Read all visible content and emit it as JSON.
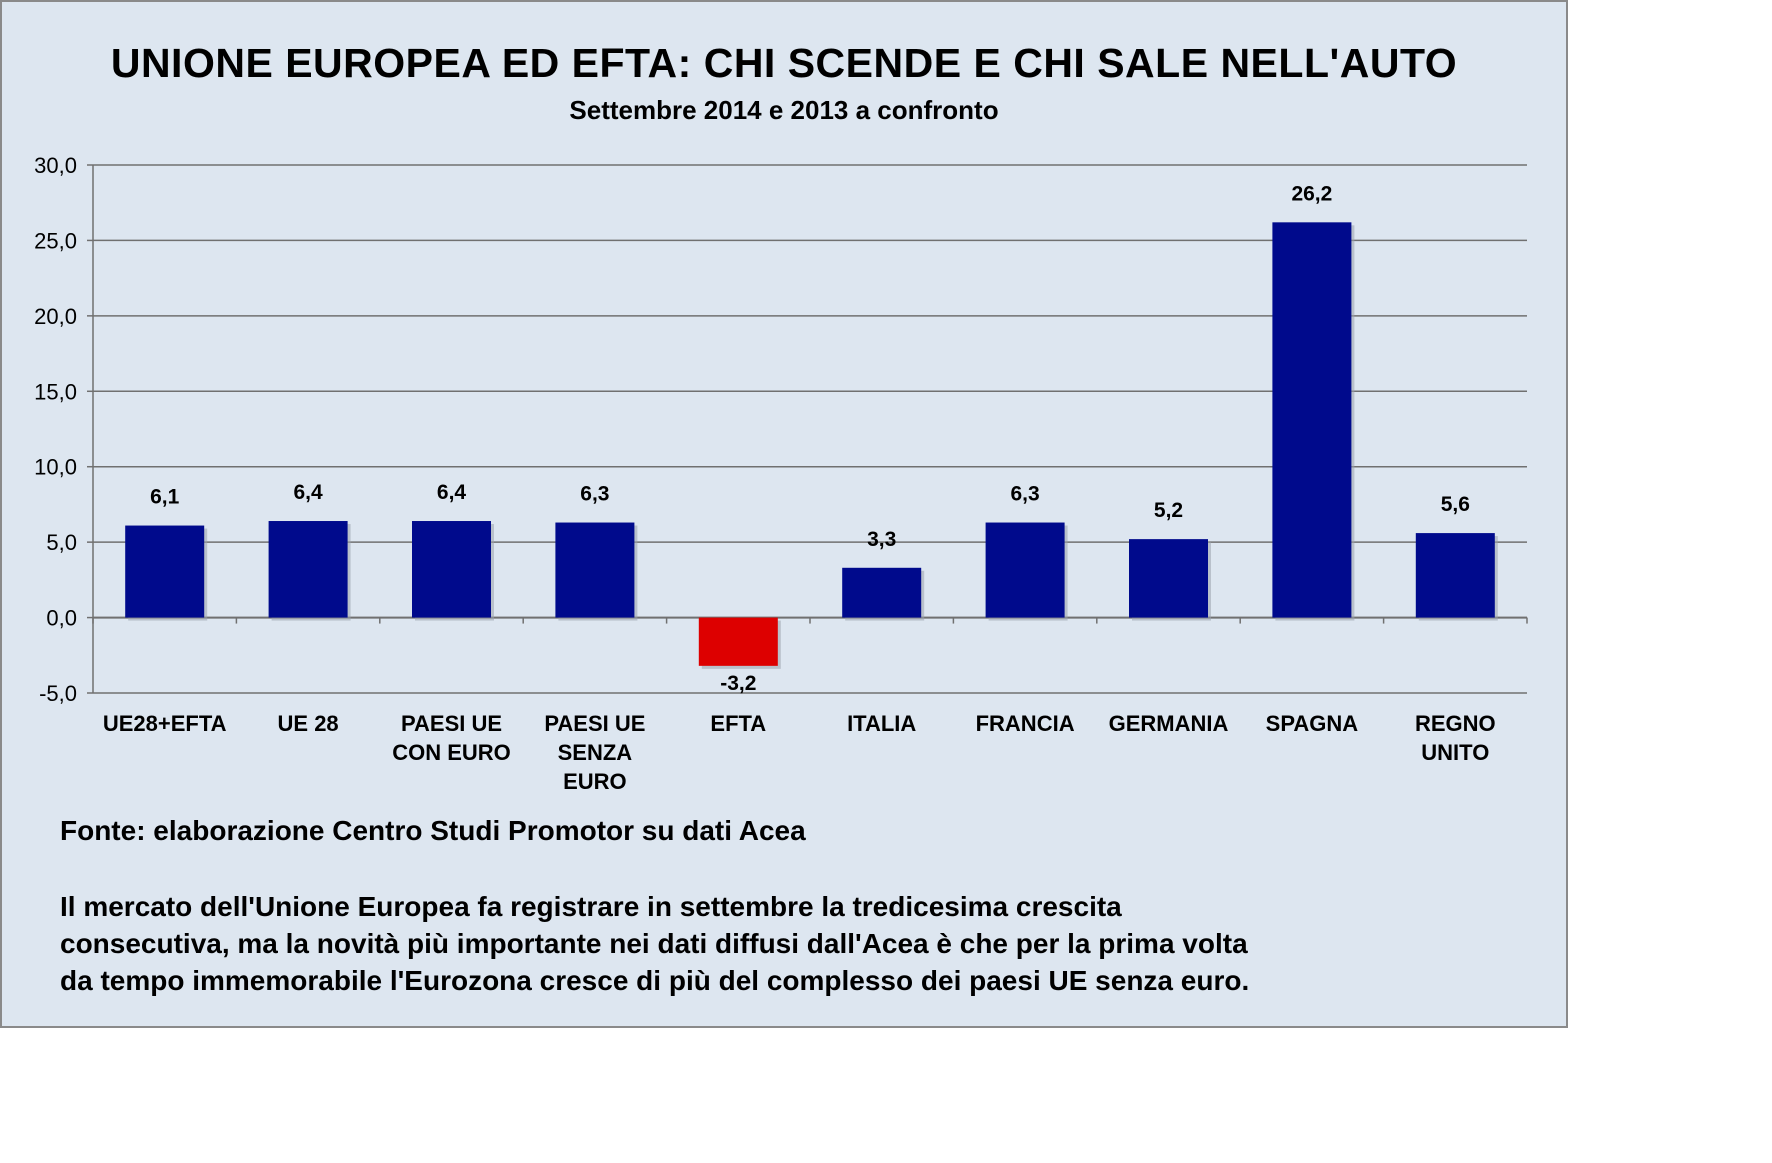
{
  "chart_data": {
    "type": "bar",
    "title": "UNIONE EUROPEA ED EFTA: CHI SCENDE E CHI SALE NELL'AUTO",
    "subtitle": "Settembre 2014 e 2013 a confronto",
    "categories": [
      [
        "UE28+EFTA"
      ],
      [
        "UE 28"
      ],
      [
        "PAESI UE",
        "CON EURO"
      ],
      [
        "PAESI UE",
        "SENZA",
        "EURO"
      ],
      [
        "EFTA"
      ],
      [
        "ITALIA"
      ],
      [
        "FRANCIA"
      ],
      [
        "GERMANIA"
      ],
      [
        "SPAGNA"
      ],
      [
        "REGNO",
        "UNITO"
      ]
    ],
    "values": [
      6.1,
      6.4,
      6.4,
      6.3,
      -3.2,
      3.3,
      6.3,
      5.2,
      26.2,
      5.6
    ],
    "value_labels": [
      "6,1",
      "6,4",
      "6,4",
      "6,3",
      "-3,2",
      "3,3",
      "6,3",
      "5,2",
      "26,2",
      "5,6"
    ],
    "ylim": [
      -5,
      30
    ],
    "yticks": [
      -5,
      0,
      5,
      10,
      15,
      20,
      25,
      30
    ],
    "ytick_labels": [
      "-5,0",
      "0,0",
      "5,0",
      "10,0",
      "15,0",
      "20,0",
      "25,0",
      "30,0"
    ],
    "grid": true,
    "colors": {
      "positive": "#000a8c",
      "negative": "#dd0000"
    }
  },
  "source": "Fonte: elaborazione Centro Studi Promotor su dati Acea",
  "notes": [
    "Il mercato dell'Unione Europea fa registrare in settembre la tredicesima crescita",
    "consecutiva, ma la novità più importante nei dati diffusi dall'Acea è che per la prima volta",
    "da tempo immemorabile l'Eurozona cresce di più del complesso dei paesi UE senza euro."
  ]
}
